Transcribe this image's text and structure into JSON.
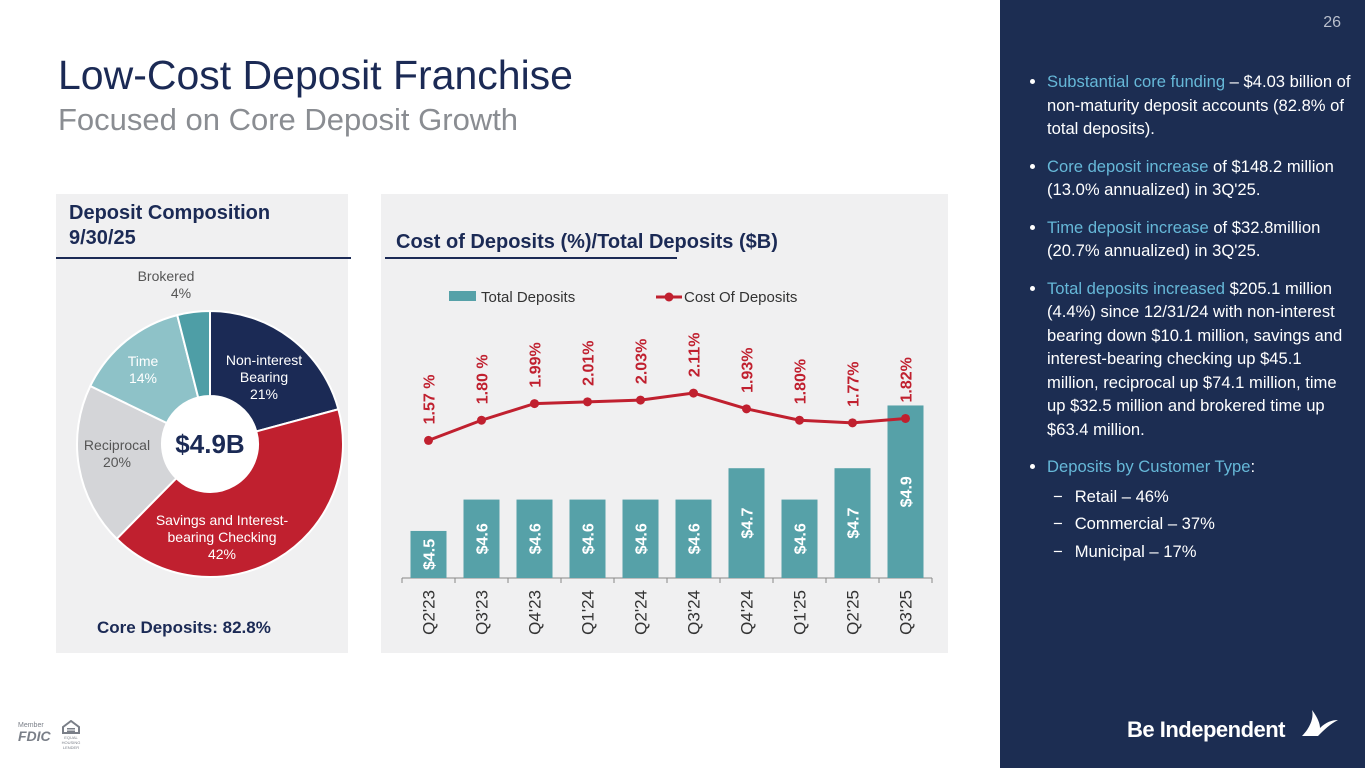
{
  "page_number": "26",
  "header": {
    "title": "Low-Cost Deposit Franchise",
    "subtitle": "Focused on Core Deposit Growth"
  },
  "chart_data": [
    {
      "type": "donut",
      "title": "Deposit Composition 9/30/25",
      "categories": [
        "Non-interest Bearing",
        "Savings and Interest-bearing Checking",
        "Reciprocal",
        "Time",
        "Brokered"
      ],
      "values": [
        21,
        42,
        20,
        14,
        4
      ],
      "value_labels": [
        "21%",
        "42%",
        "20%",
        "14%",
        "4%"
      ],
      "colors": [
        "#1b2a55",
        "#c0202f",
        "#d4d5d8",
        "#8ec2c8",
        "#4e9ea6"
      ],
      "center_label": "$4.9B",
      "footnote": "Core Deposits: 82.8%"
    },
    {
      "type": "combo",
      "title": "Cost of Deposits (%)/Total Deposits ($B)",
      "categories": [
        "Q2'23",
        "Q3'23",
        "Q4'23",
        "Q1'24",
        "Q2'24",
        "Q3'24",
        "Q4'24",
        "Q1'25",
        "Q2'25",
        "Q3'25"
      ],
      "series": [
        {
          "name": "Total Deposits",
          "type": "bar",
          "color": "#56a1a8",
          "values": [
            4.5,
            4.6,
            4.6,
            4.6,
            4.6,
            4.6,
            4.7,
            4.6,
            4.7,
            4.9
          ],
          "value_labels": [
            "$4.5",
            "$4.6",
            "$4.6",
            "$4.6",
            "$4.6",
            "$4.6",
            "$4.7",
            "$4.6",
            "$4.7",
            "$4.9"
          ]
        },
        {
          "name": "Cost Of Deposits",
          "type": "line",
          "axis": "y2",
          "color": "#c0202f",
          "values": [
            1.57,
            1.8,
            1.99,
            2.01,
            2.03,
            2.11,
            1.93,
            1.8,
            1.77,
            1.82
          ],
          "value_labels": [
            "1.57 %",
            "1.80 %",
            "1.99%",
            "2.01%",
            "2.03%",
            "2.11%",
            "1.93%",
            "1.80%",
            "1.77%",
            "1.82%"
          ]
        }
      ],
      "ylim": [
        4.35,
        5.3
      ],
      "y2lim": [
        0,
        3.4
      ],
      "legend": "top"
    }
  ],
  "bullets": [
    {
      "highlight": "Substantial core funding",
      "text": " – $4.03 billion of non-maturity deposit accounts (82.8% of total deposits)."
    },
    {
      "highlight": "Core deposit increase",
      "text": " of $148.2 million (13.0% annualized) in 3Q'25."
    },
    {
      "highlight": "Time deposit increase",
      "text": " of $32.8million (20.7% annualized) in 3Q'25."
    },
    {
      "highlight": "Total deposits increased",
      "text": " $205.1 million (4.4%) since 12/31/24 with non-interest bearing down $10.1 million, savings and interest-bearing checking up $45.1 million, reciprocal up $74.1 million, time up $32.5 million and brokered time up $63.4 million."
    },
    {
      "highlight": "Deposits by Customer Type",
      "text": ":"
    }
  ],
  "customer_types": [
    "Retail – 46%",
    "Commercial – 37%",
    "Municipal – 17%"
  ],
  "logo": "Be Independent",
  "fdic": {
    "member": "Member",
    "name": "FDIC",
    "lender": "EQUAL HOUSING LENDER"
  }
}
